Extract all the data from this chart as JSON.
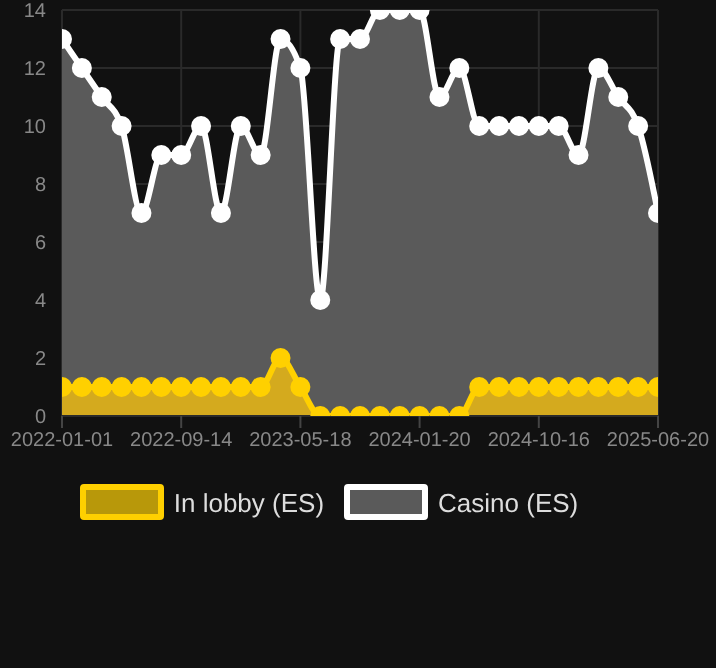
{
  "chart_data": {
    "type": "area",
    "categories": [
      "2022-01-01",
      null,
      null,
      null,
      null,
      null,
      "2022-09-14",
      null,
      null,
      null,
      null,
      null,
      "2023-05-18",
      null,
      null,
      null,
      null,
      null,
      "2024-01-20",
      null,
      null,
      null,
      null,
      null,
      "2024-10-16",
      null,
      null,
      null,
      null,
      null,
      "2025-06-20"
    ],
    "series": [
      {
        "name": "In lobby (ES)",
        "color": "#ffd000",
        "values": [
          1,
          1,
          1,
          1,
          1,
          1,
          1,
          1,
          1,
          1,
          1,
          2,
          1,
          0,
          0,
          0,
          0,
          0,
          0,
          0,
          0,
          1,
          1,
          1,
          1,
          1,
          1,
          1,
          1,
          1,
          1
        ]
      },
      {
        "name": "Casino (ES)",
        "color": "#ffffff",
        "values": [
          13,
          12,
          11,
          10,
          7,
          9,
          9,
          10,
          7,
          10,
          9,
          13,
          12,
          4,
          13,
          13,
          14,
          14,
          14,
          11,
          12,
          10,
          10,
          10,
          10,
          10,
          9,
          12,
          11,
          10,
          7
        ]
      }
    ],
    "ylim": [
      0,
      14
    ],
    "yticks": [
      0,
      2,
      4,
      6,
      8,
      10,
      12,
      14
    ],
    "grid": true,
    "legend": "bottom",
    "marker": "circle",
    "line_style": "solid"
  }
}
